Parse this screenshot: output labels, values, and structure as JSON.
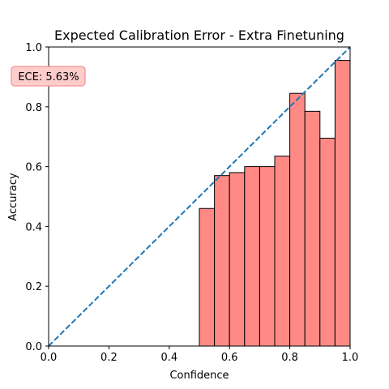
{
  "chart_data": {
    "type": "bar",
    "title": "Expected Calibration Error - Extra Finetuning",
    "xlabel": "Confidence",
    "ylabel": "Accuracy",
    "xlim": [
      0.0,
      1.0
    ],
    "ylim": [
      0.0,
      1.0
    ],
    "x_ticks": [
      "0.0",
      "0.2",
      "0.4",
      "0.6",
      "0.8",
      "1.0"
    ],
    "y_ticks": [
      "0.0",
      "0.2",
      "0.4",
      "0.6",
      "0.8",
      "1.0"
    ],
    "bin_width": 0.05,
    "bins": [
      {
        "start": 0.5,
        "value": 0.46
      },
      {
        "start": 0.55,
        "value": 0.57
      },
      {
        "start": 0.6,
        "value": 0.58
      },
      {
        "start": 0.65,
        "value": 0.6
      },
      {
        "start": 0.7,
        "value": 0.6
      },
      {
        "start": 0.75,
        "value": 0.635
      },
      {
        "start": 0.8,
        "value": 0.845
      },
      {
        "start": 0.85,
        "value": 0.785
      },
      {
        "start": 0.9,
        "value": 0.695
      },
      {
        "start": 0.95,
        "value": 0.955
      }
    ],
    "bar_color": "#ff8a85",
    "reference_line": {
      "from": [
        0.0,
        0.0
      ],
      "to": [
        1.0,
        1.0
      ],
      "style": "dashed",
      "color": "#1f77b4"
    },
    "annotation": {
      "text": "ECE: 5.63%",
      "placement": "top-left",
      "fill": "#ffcccc",
      "edge": "#f08080"
    },
    "grid": false
  }
}
